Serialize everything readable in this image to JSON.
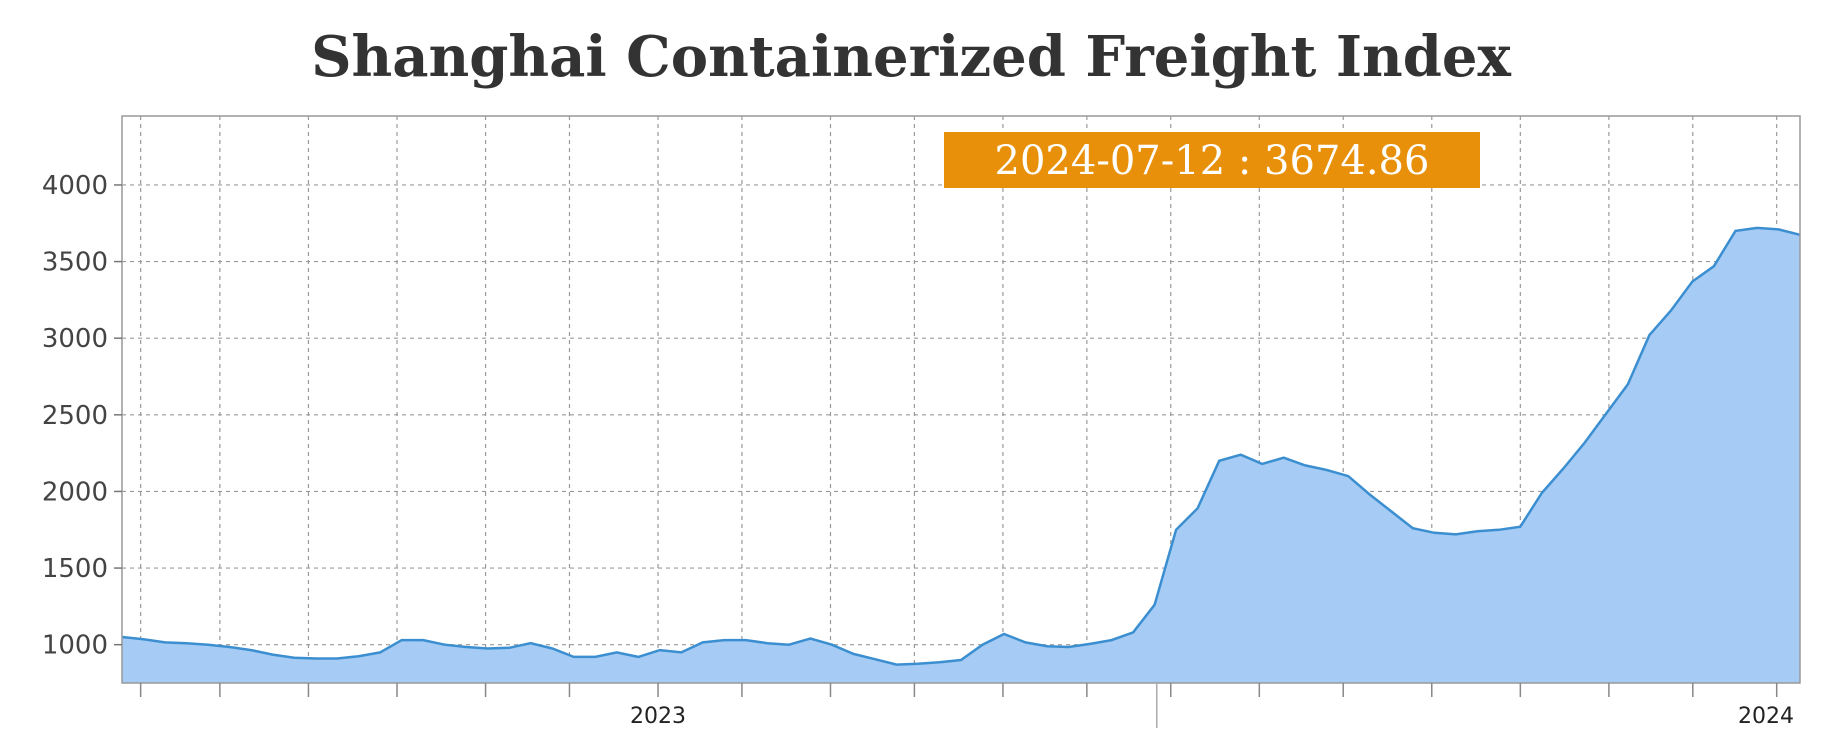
{
  "chart_data": {
    "type": "area",
    "title": "Shanghai Containerized Freight Index",
    "xlabel": "",
    "ylabel": "",
    "x_ticks": [
      {
        "label": "2023",
        "week": 28,
        "major": true
      },
      {
        "label": "2024",
        "week": 80,
        "major": true
      }
    ],
    "yticks": [
      1000,
      1500,
      2000,
      2500,
      3000,
      3500,
      4000
    ],
    "ylim": [
      750,
      4450
    ],
    "grid": true,
    "series": [
      {
        "color": "#a6cbf4",
        "line_color": "#3b8fd0",
        "values": [
          1050,
          1035,
          1015,
          1010,
          1000,
          985,
          965,
          935,
          915,
          910,
          910,
          925,
          950,
          1030,
          1030,
          1000,
          985,
          975,
          980,
          1010,
          975,
          920,
          920,
          950,
          920,
          965,
          950,
          1015,
          1030,
          1030,
          1010,
          1000,
          1040,
          1000,
          940,
          905,
          870,
          875,
          885,
          900,
          1000,
          1070,
          1015,
          990,
          985,
          1005,
          1030,
          1080,
          1260,
          1750,
          1890,
          2200,
          2240,
          2180,
          2220,
          2170,
          2140,
          2100,
          1980,
          1870,
          1760,
          1730,
          1720,
          1740,
          1750,
          1770,
          1990,
          2150,
          2320,
          2510,
          2700,
          3020,
          3180,
          3370,
          3470,
          3700,
          3720,
          3710,
          3674.86
        ]
      }
    ],
    "tooltip": {
      "label": "2024-07-12 : 3674.86"
    }
  }
}
